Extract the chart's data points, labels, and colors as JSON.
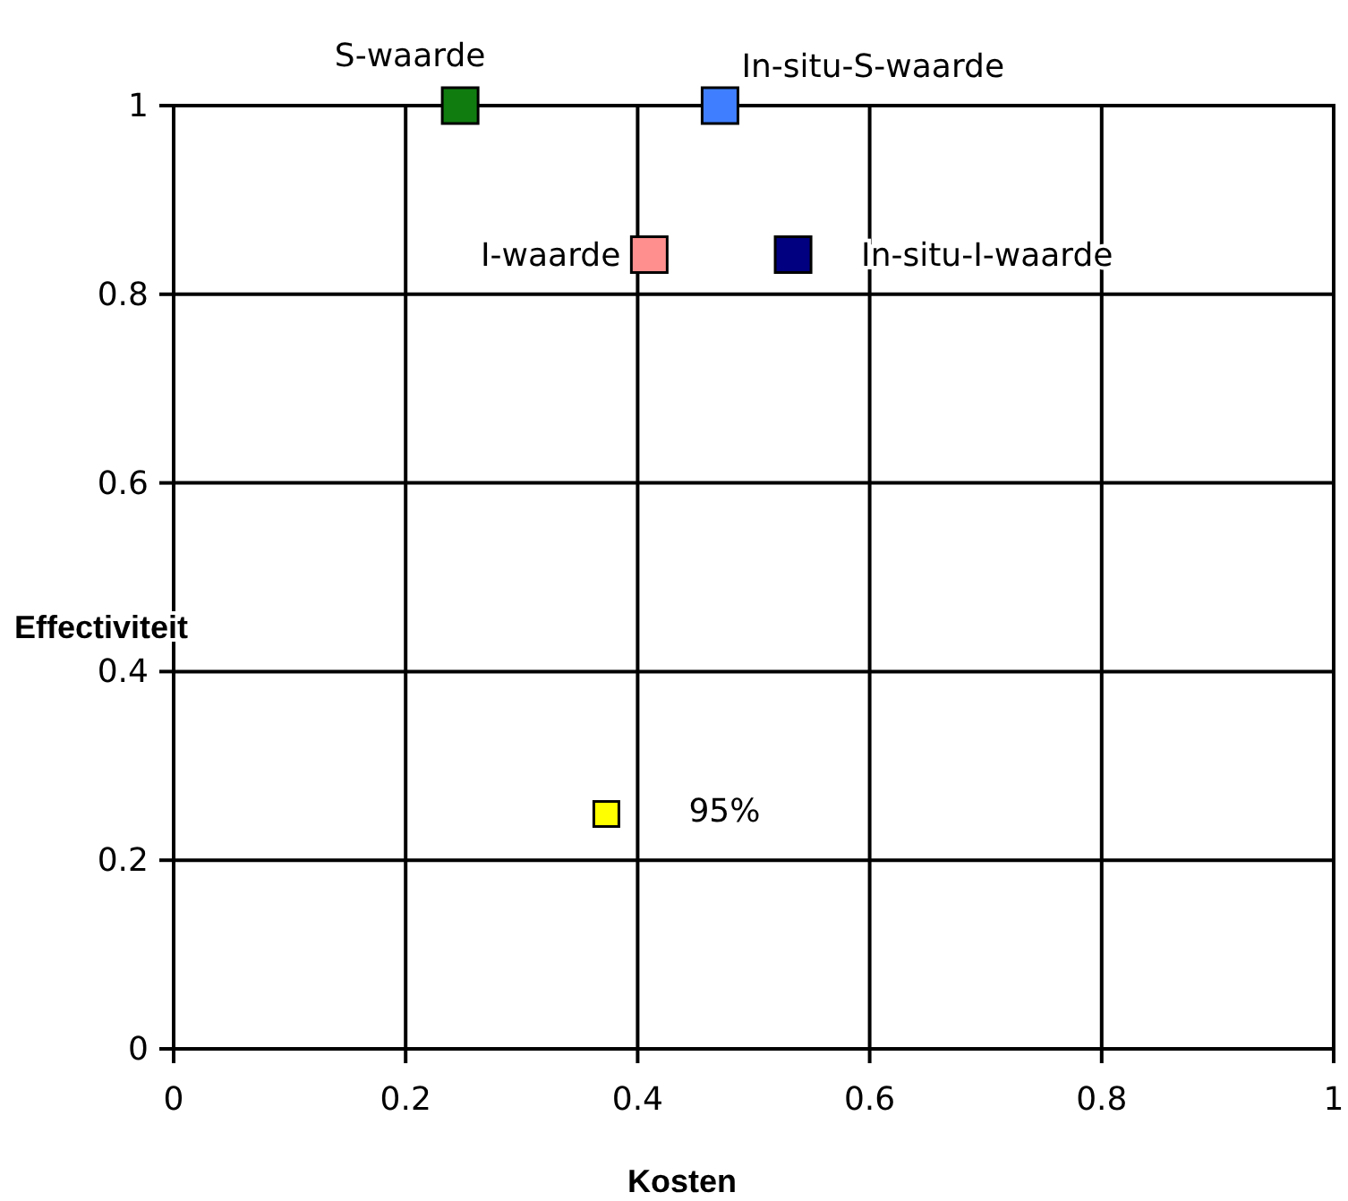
{
  "chart_data": {
    "type": "scatter",
    "xlabel": "Kosten",
    "ylabel": "Effectiviteit",
    "xlim": [
      0,
      1
    ],
    "ylim": [
      0,
      1
    ],
    "xticks": [
      0,
      0.2,
      0.4,
      0.6,
      0.8,
      1
    ],
    "yticks": [
      0,
      0.2,
      0.4,
      0.6,
      0.8,
      1
    ],
    "grid": true,
    "marker": "square",
    "series": [
      {
        "name": "S-waarde",
        "color": "#107c10",
        "x": [
          0.247
        ],
        "values": [
          1
        ]
      },
      {
        "name": "In-situ-S-waarde",
        "color": "#3f7fff",
        "x": [
          0.471
        ],
        "values": [
          1
        ]
      },
      {
        "name": "I-waarde",
        "color": "#ff8f8f",
        "x": [
          0.41
        ],
        "values": [
          0.842
        ]
      },
      {
        "name": "In-situ-I-waarde",
        "color": "#000080",
        "x": [
          0.534
        ],
        "values": [
          0.842
        ]
      },
      {
        "name": "95%",
        "color": "#ffff00",
        "x": [
          0.373
        ],
        "values": [
          0.249
        ]
      }
    ]
  }
}
